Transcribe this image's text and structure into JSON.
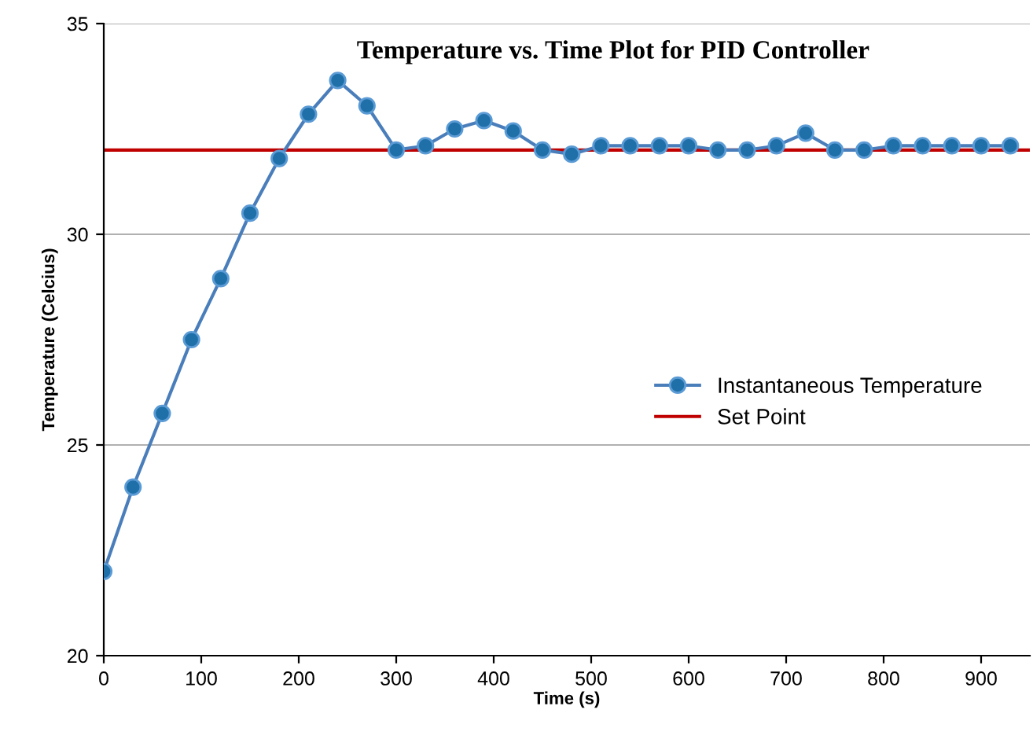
{
  "chart_data": {
    "type": "line",
    "title": "Temperature vs. Time Plot for PID Controller",
    "xlabel": "Time (s)",
    "ylabel": "Temperature (Celcius)",
    "x": [
      0,
      30,
      60,
      90,
      120,
      150,
      180,
      210,
      240,
      270,
      300,
      330,
      360,
      390,
      420,
      450,
      480,
      510,
      540,
      570,
      600,
      630,
      660,
      690,
      720,
      750,
      780,
      810,
      840,
      870,
      900,
      930
    ],
    "series": [
      {
        "name": "Instantaneous Temperature",
        "color": "#4a7ebb",
        "marker": "circle",
        "values": [
          22.0,
          24.0,
          25.75,
          27.5,
          28.95,
          30.5,
          31.8,
          32.85,
          33.65,
          33.05,
          32.0,
          32.1,
          32.5,
          32.7,
          32.45,
          32.0,
          31.9,
          32.1,
          32.1,
          32.1,
          32.1,
          32.0,
          32.0,
          32.1,
          32.4,
          32.0,
          32.0,
          32.1,
          32.1,
          32.1,
          32.1,
          32.1
        ]
      }
    ],
    "ref_lines": [
      {
        "axis": "y",
        "value": 32,
        "label": "Set Point",
        "color": "#c00000"
      }
    ],
    "xlim": [
      0,
      950
    ],
    "ylim": [
      20,
      35
    ],
    "xticks": [
      0,
      100,
      200,
      300,
      400,
      500,
      600,
      700,
      800,
      900
    ],
    "yticks": [
      20,
      25,
      30,
      35
    ],
    "grid": "y",
    "legend": "right"
  }
}
